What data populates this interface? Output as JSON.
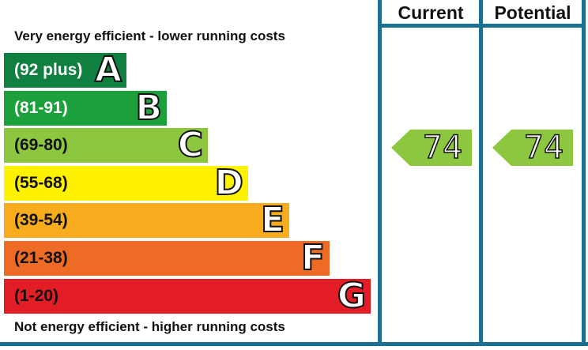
{
  "chart_data": {
    "type": "bar",
    "caption_top": "Very energy efficient - lower running costs",
    "caption_bottom": "Not energy efficient - higher running costs",
    "bands": [
      {
        "range": "(92 plus)",
        "letter": "A",
        "color": "#108040",
        "text_color": "#ffffff"
      },
      {
        "range": "(81-91)",
        "letter": "B",
        "color": "#1ca03c",
        "text_color": "#ffffff"
      },
      {
        "range": "(69-80)",
        "letter": "C",
        "color": "#8dc63f",
        "text_color": "#111111"
      },
      {
        "range": "(55-68)",
        "letter": "D",
        "color": "#fff200",
        "text_color": "#111111"
      },
      {
        "range": "(39-54)",
        "letter": "E",
        "color": "#f7ac1e",
        "text_color": "#111111"
      },
      {
        "range": "(21-38)",
        "letter": "F",
        "color": "#ed6b25",
        "text_color": "#111111"
      },
      {
        "range": "(1-20)",
        "letter": "G",
        "color": "#e31d25",
        "text_color": "#111111"
      }
    ],
    "columns": [
      {
        "label": "Current",
        "value": 74,
        "band": "C"
      },
      {
        "label": "Potential",
        "value": 74,
        "band": "C"
      }
    ],
    "marker_color": "#8dc63f",
    "frame_color": "#1b6f91"
  }
}
